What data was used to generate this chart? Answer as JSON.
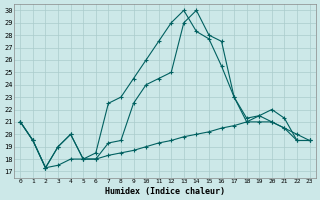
{
  "xlabel": "Humidex (Indice chaleur)",
  "ylabel": "",
  "bg_color": "#cce8e8",
  "line_color": "#006060",
  "grid_color": "#aacccc",
  "xlim": [
    -0.5,
    23.5
  ],
  "ylim": [
    16.5,
    30.5
  ],
  "xticks": [
    0,
    1,
    2,
    3,
    4,
    5,
    6,
    7,
    8,
    9,
    10,
    11,
    12,
    13,
    14,
    15,
    16,
    17,
    18,
    19,
    20,
    21,
    22,
    23
  ],
  "yticks": [
    17,
    18,
    19,
    20,
    21,
    22,
    23,
    24,
    25,
    26,
    27,
    28,
    29,
    30
  ],
  "line1_x": [
    0,
    1,
    2,
    3,
    4,
    5,
    6,
    7,
    8,
    9,
    10,
    11,
    12,
    13,
    14,
    15,
    16,
    17,
    18,
    19,
    20,
    21,
    22,
    23
  ],
  "line1_y": [
    21.0,
    19.5,
    17.3,
    19.0,
    20.0,
    18.0,
    18.5,
    22.5,
    23.0,
    24.5,
    26.0,
    27.5,
    29.0,
    30.0,
    28.3,
    27.7,
    25.5,
    23.0,
    21.0,
    21.0,
    21.0,
    20.5,
    19.5,
    19.5
  ],
  "line2_x": [
    0,
    1,
    2,
    3,
    4,
    5,
    6,
    7,
    8,
    9,
    10,
    11,
    12,
    13,
    14,
    15,
    16,
    17,
    18,
    19,
    20,
    21,
    22,
    23
  ],
  "line2_y": [
    21.0,
    19.5,
    17.3,
    19.0,
    20.0,
    18.0,
    18.0,
    19.3,
    19.5,
    22.5,
    24.0,
    24.5,
    25.0,
    29.0,
    30.0,
    28.0,
    27.5,
    23.0,
    21.3,
    21.5,
    21.0,
    20.5,
    20.0,
    19.5
  ],
  "line3_x": [
    0,
    1,
    2,
    3,
    4,
    5,
    6,
    7,
    8,
    9,
    10,
    11,
    12,
    13,
    14,
    15,
    16,
    17,
    18,
    19,
    20,
    21,
    22,
    23
  ],
  "line3_y": [
    21.0,
    19.5,
    17.3,
    17.5,
    18.0,
    18.0,
    18.0,
    18.3,
    18.5,
    18.7,
    19.0,
    19.3,
    19.5,
    19.8,
    20.0,
    20.2,
    20.5,
    20.7,
    21.0,
    21.5,
    22.0,
    21.3,
    19.5,
    19.5
  ]
}
